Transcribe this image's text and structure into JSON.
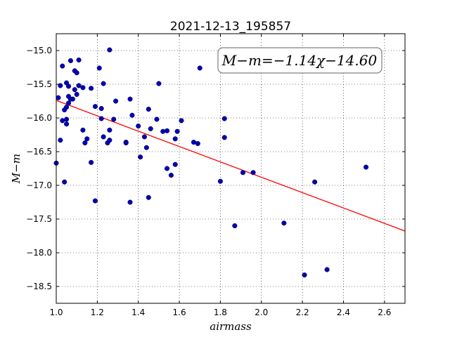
{
  "chart_data": {
    "type": "scatter",
    "title": "2021-12-13_195857",
    "xlabel": "airmass",
    "ylabel": "M−m",
    "xlim": [
      1.0,
      2.7
    ],
    "ylim": [
      -18.75,
      -14.75
    ],
    "x_ticks": [
      "1.0",
      "1.2",
      "1.4",
      "1.6",
      "1.8",
      "2.0",
      "2.2",
      "2.4",
      "2.6"
    ],
    "y_ticks": [
      "−15.0",
      "−15.5",
      "−16.0",
      "−16.5",
      "−17.0",
      "−17.5",
      "−18.0",
      "−18.5"
    ],
    "grid": true,
    "fit_label": "M−m=−1.14χ−14.60",
    "fit": {
      "slope": -1.14,
      "intercept": -14.6,
      "color": "#ff0000"
    },
    "point_color": "#0000bb",
    "points": [
      [
        1.0,
        -16.67
      ],
      [
        1.01,
        -15.7
      ],
      [
        1.02,
        -15.52
      ],
      [
        1.02,
        -16.33
      ],
      [
        1.03,
        -16.04
      ],
      [
        1.03,
        -15.23
      ],
      [
        1.04,
        -16.95
      ],
      [
        1.04,
        -15.88
      ],
      [
        1.05,
        -15.48
      ],
      [
        1.05,
        -15.84
      ],
      [
        1.05,
        -16.02
      ],
      [
        1.05,
        -16.09
      ],
      [
        1.06,
        -15.78
      ],
      [
        1.06,
        -15.68
      ],
      [
        1.06,
        -15.53
      ],
      [
        1.07,
        -15.15
      ],
      [
        1.07,
        -15.72
      ],
      [
        1.08,
        -15.72
      ],
      [
        1.09,
        -15.3
      ],
      [
        1.09,
        -15.58
      ],
      [
        1.1,
        -15.65
      ],
      [
        1.1,
        -15.33
      ],
      [
        1.11,
        -15.52
      ],
      [
        1.11,
        -15.14
      ],
      [
        1.13,
        -16.18
      ],
      [
        1.13,
        -15.55
      ],
      [
        1.14,
        -16.37
      ],
      [
        1.15,
        -16.31
      ],
      [
        1.17,
        -15.56
      ],
      [
        1.17,
        -16.66
      ],
      [
        1.19,
        -17.23
      ],
      [
        1.19,
        -15.83
      ],
      [
        1.21,
        -15.26
      ],
      [
        1.22,
        -15.86
      ],
      [
        1.22,
        -16.01
      ],
      [
        1.23,
        -15.49
      ],
      [
        1.23,
        -16.28
      ],
      [
        1.25,
        -16.37
      ],
      [
        1.26,
        -16.33
      ],
      [
        1.26,
        -16.18
      ],
      [
        1.26,
        -14.99
      ],
      [
        1.28,
        -16.02
      ],
      [
        1.29,
        -15.75
      ],
      [
        1.34,
        -16.36
      ],
      [
        1.34,
        -16.37
      ],
      [
        1.36,
        -15.72
      ],
      [
        1.36,
        -17.25
      ],
      [
        1.37,
        -15.96
      ],
      [
        1.4,
        -16.12
      ],
      [
        1.41,
        -16.58
      ],
      [
        1.43,
        -16.28
      ],
      [
        1.44,
        -16.44
      ],
      [
        1.45,
        -17.18
      ],
      [
        1.45,
        -15.87
      ],
      [
        1.46,
        -16.16
      ],
      [
        1.49,
        -16.02
      ],
      [
        1.5,
        -15.49
      ],
      [
        1.52,
        -16.2
      ],
      [
        1.54,
        -16.19
      ],
      [
        1.54,
        -16.75
      ],
      [
        1.56,
        -16.85
      ],
      [
        1.58,
        -16.31
      ],
      [
        1.58,
        -16.69
      ],
      [
        1.59,
        -16.2
      ],
      [
        1.61,
        -16.04
      ],
      [
        1.67,
        -16.36
      ],
      [
        1.69,
        -16.38
      ],
      [
        1.7,
        -15.26
      ],
      [
        1.8,
        -16.94
      ],
      [
        1.82,
        -16.01
      ],
      [
        1.82,
        -16.29
      ],
      [
        1.87,
        -17.6
      ],
      [
        1.91,
        -16.81
      ],
      [
        1.96,
        -16.81
      ],
      [
        2.11,
        -17.56
      ],
      [
        2.21,
        -18.33
      ],
      [
        2.26,
        -16.95
      ],
      [
        2.32,
        -18.25
      ],
      [
        2.51,
        -16.73
      ]
    ]
  }
}
